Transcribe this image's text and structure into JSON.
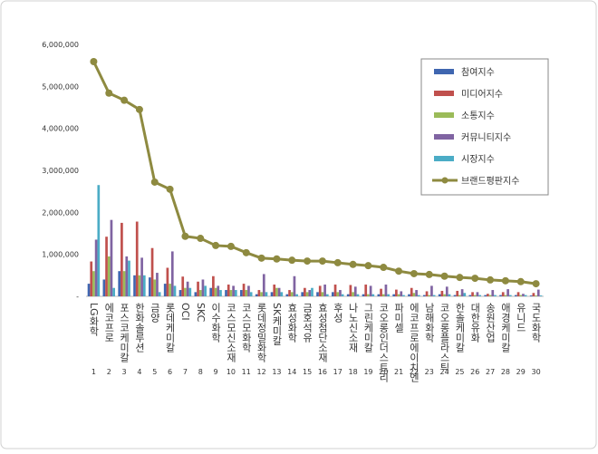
{
  "chart_data": {
    "type": "bar",
    "categories": [
      "LG화학",
      "에코프로",
      "포스코케미칼",
      "한화솔루션",
      "금양",
      "롯데케미칼",
      "OCI",
      "SKC",
      "이수화학",
      "코스모신소재",
      "코스모화학",
      "롯데정밀화학",
      "SK케미칼",
      "효성화학",
      "금호석유",
      "효성첨단소재",
      "후성",
      "나노신소재",
      "그린케미칼",
      "코오롱인더스트리",
      "파미셀",
      "에코프로에이치엔",
      "남해화학",
      "코오롱플라스틱",
      "한솔케미칼",
      "대한유화",
      "송원산업",
      "애경케미칼",
      "유니드",
      "국도화학"
    ],
    "ranks": [
      1,
      2,
      3,
      4,
      5,
      6,
      7,
      8,
      9,
      10,
      11,
      12,
      13,
      14,
      15,
      16,
      17,
      18,
      19,
      20,
      21,
      22,
      23,
      24,
      25,
      26,
      27,
      28,
      29,
      30
    ],
    "series": [
      {
        "name": "참여지수",
        "color": "#3f66b0",
        "values": [
          300000,
          400000,
          600000,
          500000,
          450000,
          300000,
          150000,
          100000,
          200000,
          150000,
          150000,
          50000,
          100000,
          50000,
          100000,
          100000,
          100000,
          50000,
          50000,
          50000,
          50000,
          50000,
          30000,
          50000,
          30000,
          30000,
          30000,
          30000,
          30000,
          20000
        ]
      },
      {
        "name": "미디어지수",
        "color": "#c0504d",
        "values": [
          830000,
          1420000,
          1750000,
          1780000,
          1150000,
          680000,
          470000,
          350000,
          480000,
          280000,
          300000,
          150000,
          280000,
          150000,
          200000,
          250000,
          280000,
          270000,
          280000,
          180000,
          160000,
          200000,
          120000,
          130000,
          130000,
          100000,
          60000,
          100000,
          100000,
          80000
        ]
      },
      {
        "name": "소통지수",
        "color": "#9bbb59",
        "values": [
          600000,
          950000,
          600000,
          500000,
          400000,
          300000,
          200000,
          150000,
          200000,
          150000,
          150000,
          100000,
          200000,
          100000,
          100000,
          100000,
          100000,
          100000,
          50000,
          50000,
          50000,
          80000,
          30000,
          50000,
          30000,
          30000,
          30000,
          30000,
          30000,
          20000
        ]
      },
      {
        "name": "커뮤니티지수",
        "color": "#8064a2",
        "values": [
          1350000,
          1820000,
          950000,
          920000,
          560000,
          1070000,
          350000,
          400000,
          250000,
          250000,
          250000,
          530000,
          200000,
          480000,
          150000,
          280000,
          150000,
          230000,
          250000,
          280000,
          120000,
          150000,
          250000,
          230000,
          170000,
          100000,
          150000,
          170000,
          60000,
          160000
        ]
      },
      {
        "name": "시장지수",
        "color": "#4bacc6",
        "values": [
          2650000,
          200000,
          850000,
          500000,
          100000,
          250000,
          200000,
          250000,
          150000,
          150000,
          100000,
          100000,
          100000,
          50000,
          200000,
          50000,
          50000,
          50000,
          50000,
          50000,
          30000,
          30000,
          30000,
          50000,
          80000,
          30000,
          30000,
          30000,
          30000,
          20000
        ]
      },
      {
        "name": "브랜드평판지수",
        "type": "line",
        "color": "#8e8a40",
        "values": [
          5590000,
          4840000,
          4670000,
          4450000,
          2720000,
          2550000,
          1430000,
          1380000,
          1210000,
          1190000,
          1040000,
          910000,
          890000,
          860000,
          840000,
          840000,
          800000,
          760000,
          730000,
          690000,
          600000,
          540000,
          520000,
          480000,
          450000,
          430000,
          390000,
          370000,
          350000,
          300000
        ]
      }
    ],
    "ylim": [
      0,
      6000000
    ],
    "yticks": [
      {
        "value": 0,
        "label": "-"
      },
      {
        "value": 1000000,
        "label": "1,000,000"
      },
      {
        "value": 2000000,
        "label": "2,000,000"
      },
      {
        "value": 3000000,
        "label": "3,000,000"
      },
      {
        "value": 4000000,
        "label": "4,000,000"
      },
      {
        "value": 5000000,
        "label": "5,000,000"
      },
      {
        "value": 6000000,
        "label": "6,000,000"
      }
    ],
    "legend": "upper right"
  }
}
